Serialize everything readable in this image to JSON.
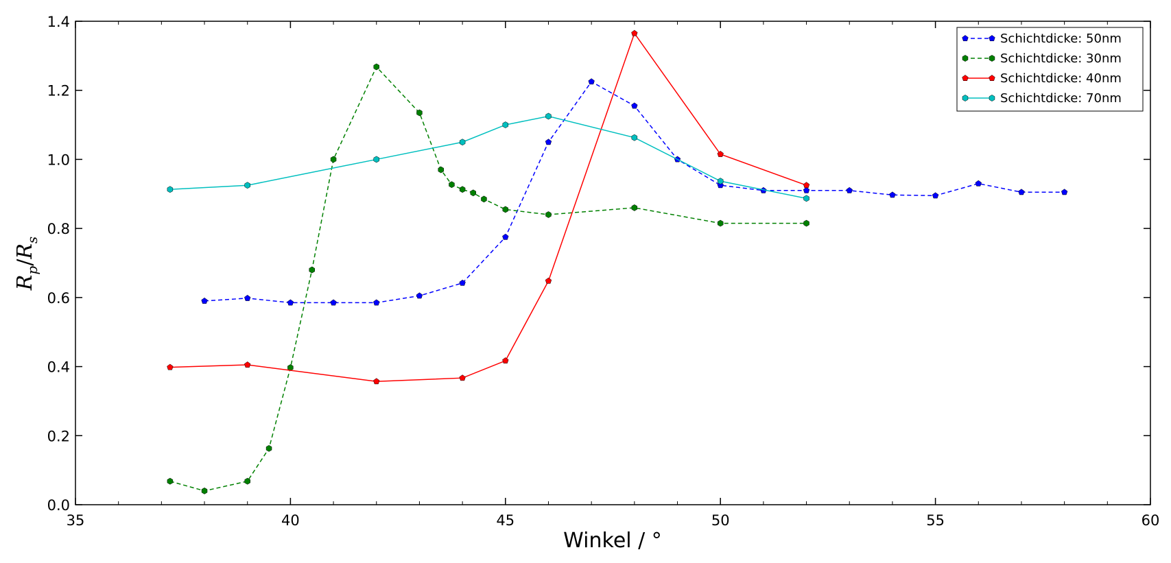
{
  "chart_data": {
    "type": "line",
    "title": "",
    "xlabel": "Winkel / °",
    "ylabel_parts": {
      "r1": "R",
      "s1": "p",
      "slash": "/",
      "r2": "R",
      "s2": "s"
    },
    "xlim": [
      35,
      60
    ],
    "ylim": [
      0.0,
      1.4
    ],
    "xticks": [
      35,
      40,
      45,
      50,
      55,
      60
    ],
    "yticks": [
      0.0,
      0.2,
      0.4,
      0.6,
      0.8,
      1.0,
      1.2,
      1.4
    ],
    "ytick_labels": [
      "0.0",
      "0.2",
      "0.4",
      "0.6",
      "0.8",
      "1.0",
      "1.2",
      "1.4"
    ],
    "grid": false,
    "legend_position": "top-right",
    "series": [
      {
        "name": "Schichtdicke: 50nm",
        "color": "#0000ff",
        "line_style": "dashed",
        "marker": "pentagon",
        "x": [
          38,
          39,
          40,
          41,
          42,
          43,
          44,
          45,
          46,
          47,
          48,
          49,
          50,
          51,
          52,
          53,
          54,
          55,
          56,
          57,
          58
        ],
        "y": [
          0.59,
          0.598,
          0.585,
          0.585,
          0.585,
          0.605,
          0.642,
          0.775,
          1.05,
          1.225,
          1.155,
          1.0,
          0.925,
          0.91,
          0.91,
          0.91,
          0.897,
          0.895,
          0.93,
          0.905,
          0.905
        ]
      },
      {
        "name": "Schichtdicke: 30nm",
        "color": "#008000",
        "line_style": "dashed",
        "marker": "hexagon",
        "x": [
          37.2,
          38,
          39,
          39.5,
          40,
          40.5,
          41,
          42,
          43,
          43.5,
          43.75,
          44,
          44.25,
          44.5,
          45,
          46,
          48,
          50,
          52
        ],
        "y": [
          0.068,
          0.04,
          0.068,
          0.163,
          0.397,
          0.68,
          1.0,
          1.268,
          1.135,
          0.97,
          0.927,
          0.913,
          0.903,
          0.885,
          0.855,
          0.84,
          0.86,
          0.815,
          0.815
        ]
      },
      {
        "name": "Schichtdicke: 40nm",
        "color": "#ff0000",
        "line_style": "solid",
        "marker": "pentagon",
        "x": [
          37.2,
          39,
          42,
          44,
          45,
          46,
          48,
          50,
          52
        ],
        "y": [
          0.398,
          0.405,
          0.357,
          0.367,
          0.417,
          0.648,
          1.365,
          1.015,
          0.925
        ]
      },
      {
        "name": "Schichtdicke: 70nm",
        "color": "#00bfbf",
        "line_style": "solid",
        "marker": "hexagon",
        "x": [
          37.2,
          39,
          42,
          44,
          45,
          46,
          48,
          50,
          52
        ],
        "y": [
          0.913,
          0.925,
          1.0,
          1.05,
          1.1,
          1.125,
          1.063,
          0.937,
          0.887
        ]
      }
    ]
  }
}
